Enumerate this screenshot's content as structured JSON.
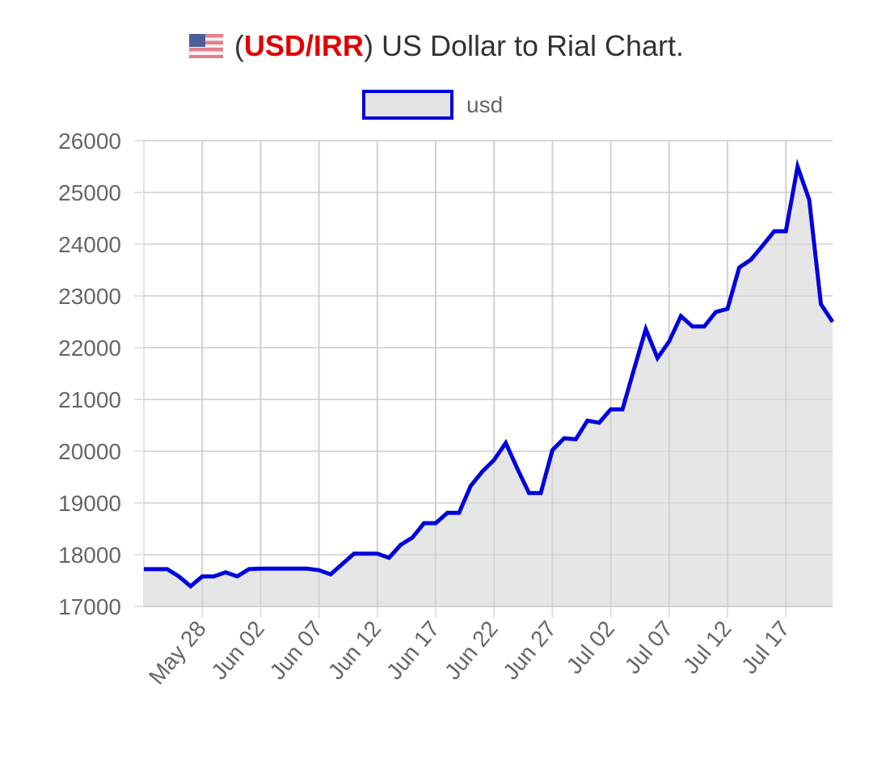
{
  "title": {
    "flag_icon": "us-flag-icon",
    "pair": "USD/IRR",
    "text": "US Dollar to Rial Chart."
  },
  "chart_data": {
    "type": "area",
    "title": "(USD/IRR) US Dollar to Rial Chart.",
    "legend": {
      "label": "usd",
      "position": "top"
    },
    "series": [
      {
        "name": "usd",
        "color": "#0000dd",
        "fill": "#e3e3e3",
        "x": [
          "May 23",
          "May 24",
          "May 25",
          "May 26",
          "May 27",
          "May 28",
          "May 29",
          "May 30",
          "May 31",
          "Jun 01",
          "Jun 02",
          "Jun 03",
          "Jun 04",
          "Jun 05",
          "Jun 06",
          "Jun 07",
          "Jun 08",
          "Jun 09",
          "Jun 10",
          "Jun 11",
          "Jun 12",
          "Jun 13",
          "Jun 14",
          "Jun 15",
          "Jun 16",
          "Jun 17",
          "Jun 18",
          "Jun 19",
          "Jun 20",
          "Jun 21",
          "Jun 22",
          "Jun 23",
          "Jun 24",
          "Jun 25",
          "Jun 26",
          "Jun 27",
          "Jun 28",
          "Jun 29",
          "Jun 30",
          "Jul 01",
          "Jul 02",
          "Jul 03",
          "Jul 04",
          "Jul 05",
          "Jul 06",
          "Jul 07",
          "Jul 08",
          "Jul 09",
          "Jul 10",
          "Jul 11",
          "Jul 12",
          "Jul 13",
          "Jul 14",
          "Jul 15",
          "Jul 16",
          "Jul 17",
          "Jul 18",
          "Jul 19",
          "Jul 20",
          "Jul 21"
        ],
        "values": [
          17720,
          17720,
          17720,
          17580,
          17390,
          17580,
          17580,
          17660,
          17580,
          17720,
          17730,
          17730,
          17730,
          17730,
          17730,
          17700,
          17620,
          17820,
          18020,
          18020,
          18020,
          17940,
          18190,
          18330,
          18610,
          18610,
          18810,
          18810,
          19330,
          19610,
          19830,
          20160,
          19660,
          19190,
          19190,
          20020,
          20250,
          20230,
          20590,
          20550,
          20810,
          20810,
          21590,
          22360,
          21800,
          22120,
          22610,
          22410,
          22410,
          22690,
          22750,
          23550,
          23700,
          23970,
          24250,
          24250,
          25500,
          24860,
          22840,
          22500
        ]
      }
    ],
    "x_ticks": [
      "May 28",
      "Jun 02",
      "Jun 07",
      "Jun 12",
      "Jun 17",
      "Jun 22",
      "Jun 27",
      "Jul 02",
      "Jul 07",
      "Jul 12",
      "Jul 17"
    ],
    "y_ticks": [
      17000,
      18000,
      19000,
      20000,
      21000,
      22000,
      23000,
      24000,
      25000,
      26000
    ],
    "ylim": [
      17000,
      26000
    ],
    "grid": true,
    "xlabel": "",
    "ylabel": ""
  }
}
